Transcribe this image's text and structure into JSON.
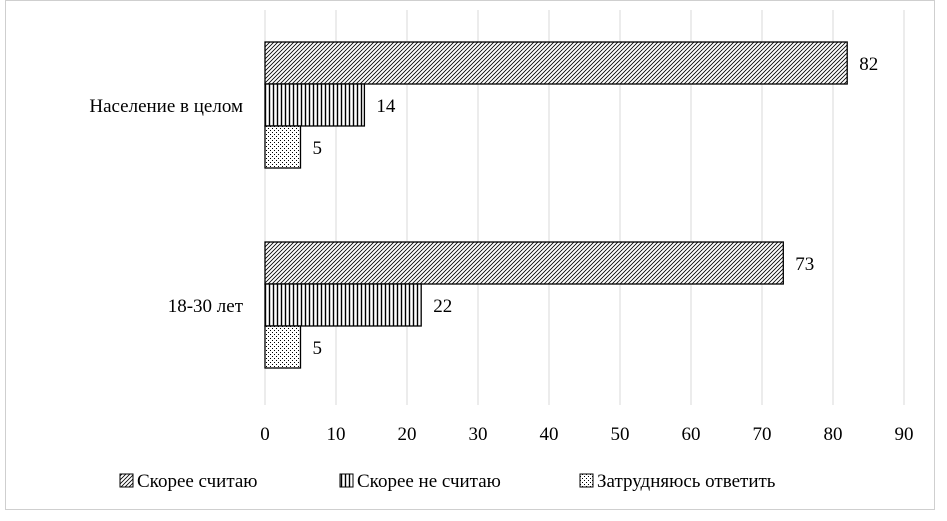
{
  "chart_data": {
    "type": "bar",
    "orientation": "horizontal",
    "title": "",
    "xlabel": "",
    "ylabel": "",
    "categories": [
      "Население в целом",
      "18-30 лет"
    ],
    "series": [
      {
        "name": "Скорее считаю",
        "values": [
          82,
          73
        ],
        "pattern": "diagonal-hatch"
      },
      {
        "name": "Скорее не считаю",
        "values": [
          14,
          22
        ],
        "pattern": "vertical-lines"
      },
      {
        "name": "Затрудняюсь ответить",
        "values": [
          5,
          5
        ],
        "pattern": "dots"
      }
    ],
    "xlim": [
      0,
      90
    ],
    "xticks": [
      0,
      10,
      20,
      30,
      40,
      50,
      60,
      70,
      80,
      90
    ],
    "grid": "vertical",
    "legend_position": "bottom",
    "data_labels": true,
    "colors": {
      "bar_stroke": "#000000",
      "grid": "#d9d9d9",
      "frame": "#cfcfcf"
    }
  }
}
